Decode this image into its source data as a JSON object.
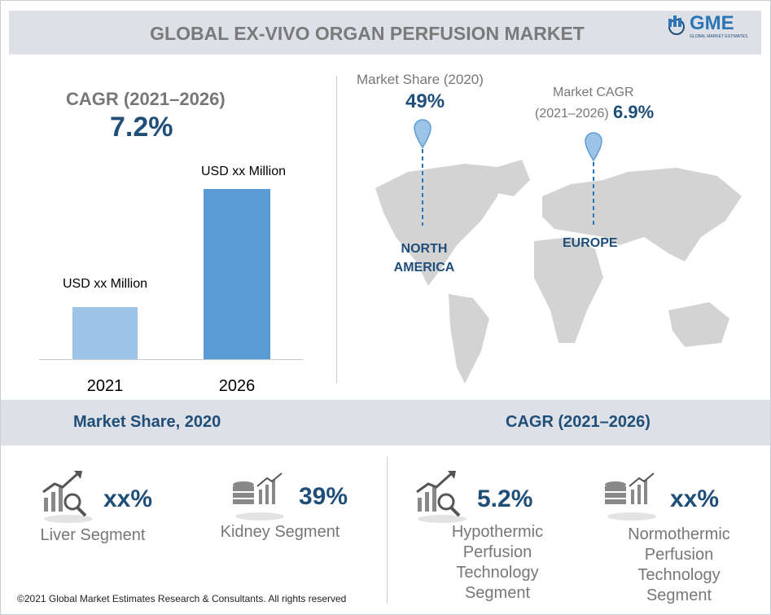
{
  "header": {
    "title": "GLOBAL EX-VIVO ORGAN PERFUSION MARKET",
    "logo": "GME",
    "logo_sub": "GLOBAL MARKET ESTIMATES"
  },
  "cagr_panel": {
    "label": "CAGR (2021–2026)",
    "value": "7.2%",
    "bars": [
      {
        "label": "USD xx Million",
        "year": "2021"
      },
      {
        "label": "USD xx Million",
        "year": "2026"
      }
    ]
  },
  "map": {
    "north_america": {
      "caption": "Market Share (2020)",
      "value": "49%",
      "region": "NORTH AMERICA"
    },
    "europe": {
      "caption_line1": "Market CAGR",
      "caption_line2": "(2021–2026)",
      "value": "6.9%",
      "region": "EUROPE"
    }
  },
  "market_share": {
    "heading": "Market Share, 2020",
    "items": [
      {
        "value": "xx%",
        "label": "Liver Segment"
      },
      {
        "value": "39%",
        "label": "Kidney Segment"
      }
    ]
  },
  "cagr": {
    "heading": "CAGR (2021–2026)",
    "items": [
      {
        "value": "5.2%",
        "label": "Hypothermic Perfusion Technology Segment"
      },
      {
        "value": "xx%",
        "label": "Normothermic Perfusion Technology Segment"
      }
    ]
  },
  "footer": "©2021 Global Market Estimates Research & Consultants. All rights reserved"
}
